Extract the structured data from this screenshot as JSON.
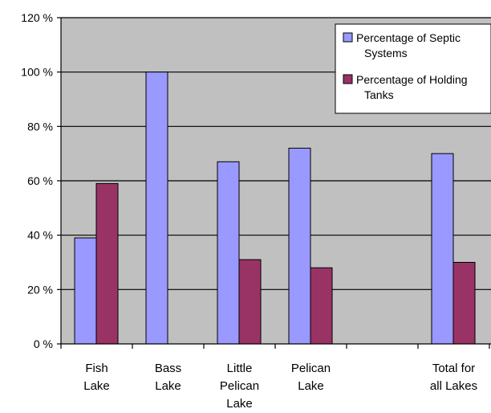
{
  "chart_data": {
    "type": "bar",
    "categories": [
      [
        "Fish",
        "Lake"
      ],
      [
        "Bass",
        "Lake"
      ],
      [
        "Little",
        "Pelican",
        "Lake"
      ],
      [
        "Pelican",
        "Lake"
      ],
      [],
      [
        "Total for",
        "all Lakes"
      ]
    ],
    "series": [
      {
        "name": "Percentage of Septic Systems",
        "name_lines": [
          "Percentage of Septic",
          "Systems"
        ],
        "color": "#9999FF",
        "values": [
          39,
          100,
          67,
          72,
          null,
          70
        ]
      },
      {
        "name": "Percentage of Holding Tanks",
        "name_lines": [
          "Percentage of Holding",
          "Tanks"
        ],
        "color": "#993366",
        "values": [
          59,
          null,
          31,
          28,
          null,
          30
        ]
      }
    ],
    "ylim": [
      0,
      120
    ],
    "yticks": [
      "0 %",
      "20 %",
      "40 %",
      "60 %",
      "80 %",
      "100 %",
      "120 %"
    ],
    "yticks_values": [
      0,
      20,
      40,
      60,
      80,
      100,
      120
    ],
    "grid": true,
    "plot_background": "#C0C0C0",
    "legend_position": "top-right",
    "title": "",
    "xlabel": "",
    "ylabel": ""
  }
}
